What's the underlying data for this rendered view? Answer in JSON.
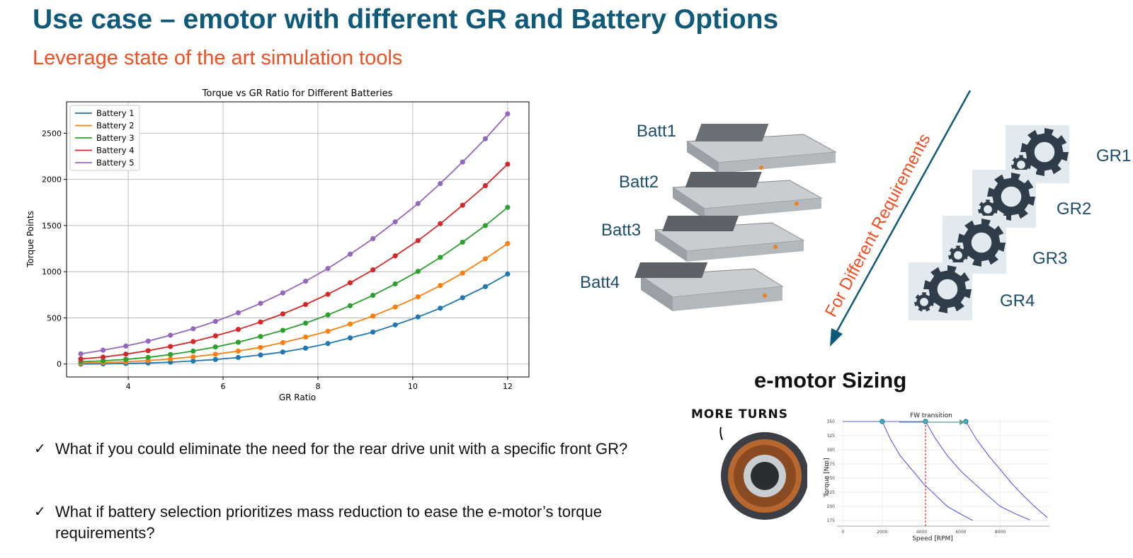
{
  "slide": {
    "title": "Use case – emotor with different GR and Battery Options",
    "subtitle": "Leverage state of the art simulation tools",
    "questions": [
      "What if you could eliminate the need for the rear drive unit with a specific front GR?",
      "What if battery selection prioritizes mass reduction to ease the e-motor’s torque requirements?"
    ],
    "check_glyph": "✓"
  },
  "diagram": {
    "batteries": [
      "Batt1",
      "Batt2",
      "Batt3",
      "Batt4"
    ],
    "gear_ratios": [
      "GR1",
      "GR2",
      "GR3",
      "GR4"
    ],
    "arrow_label": "For Different Requirements",
    "sizing_title": "e-motor Sizing",
    "more_turns": "MORE TURNS",
    "battery_icon": "battery-pack-icon",
    "gear_icon": "gear-icon",
    "colors": {
      "arrow": "#0f5a7a",
      "label": "#1c4d6b",
      "accent": "#f04e23",
      "gear_bg": "#e3eaef",
      "gear": "#2f3d4a"
    }
  },
  "chart_data": [
    {
      "type": "line",
      "title": "Torque vs GR Ratio for Different Batteries",
      "xlabel": "GR Ratio",
      "ylabel": "Torque Points",
      "xlim": [
        2.7,
        12.45
      ],
      "ylim": [
        -140,
        2840
      ],
      "xticks": [
        4,
        6,
        8,
        10,
        12
      ],
      "yticks": [
        0,
        500,
        1000,
        1500,
        2000,
        2500
      ],
      "grid": true,
      "legend_position": "upper-left",
      "x": [
        3.0,
        3.47,
        3.95,
        4.42,
        4.89,
        5.37,
        5.84,
        6.32,
        6.79,
        7.26,
        7.74,
        8.21,
        8.68,
        9.16,
        9.63,
        10.11,
        10.58,
        11.05,
        11.53,
        12.0
      ],
      "series": [
        {
          "name": "Battery 1",
          "color": "#1f77b4",
          "values": [
            0,
            2,
            6,
            11,
            20,
            33,
            49,
            71,
            98,
            130,
            172,
            222,
            283,
            346,
            424,
            510,
            605,
            718,
            838,
            975
          ]
        },
        {
          "name": "Battery 2",
          "color": "#ff7f0e",
          "values": [
            10,
            16,
            24,
            37,
            55,
            78,
            106,
            140,
            180,
            232,
            292,
            355,
            433,
            520,
            618,
            728,
            850,
            985,
            1140,
            1305
          ]
        },
        {
          "name": "Battery 3",
          "color": "#2ca02c",
          "values": [
            25,
            35,
            50,
            72,
            103,
            140,
            185,
            236,
            298,
            365,
            443,
            532,
            632,
            744,
            868,
            1004,
            1155,
            1320,
            1500,
            1697
          ]
        },
        {
          "name": "Battery 4",
          "color": "#d62728",
          "values": [
            55,
            75,
            107,
            145,
            190,
            243,
            305,
            375,
            455,
            543,
            645,
            756,
            880,
            1020,
            1172,
            1337,
            1520,
            1720,
            1932,
            2165
          ]
        },
        {
          "name": "Battery 5",
          "color": "#9467bd",
          "values": [
            110,
            150,
            195,
            248,
            312,
            382,
            462,
            555,
            657,
            770,
            897,
            1035,
            1190,
            1358,
            1540,
            1738,
            1955,
            2188,
            2440,
            2710
          ]
        }
      ]
    },
    {
      "type": "line",
      "title": "",
      "xlabel": "Speed [RPM]",
      "ylabel": "Torque [Nm]",
      "xlim": [
        -300,
        10500
      ],
      "ylim": [
        165,
        355
      ],
      "xticks": [
        0,
        2000,
        4000,
        6000,
        8000
      ],
      "yticks": [
        175,
        200,
        225,
        250,
        275,
        300,
        325,
        350
      ],
      "grid": true,
      "annotation": "FW transition",
      "marker_speed": 4200,
      "series": [
        {
          "name": "",
          "color": "#5a5ae0",
          "x": [
            0,
            2000,
            2400,
            2900,
            3500,
            4100,
            4700,
            5300,
            5800,
            6600
          ],
          "values": [
            350,
            350,
            320,
            290,
            265,
            240,
            220,
            200,
            190,
            175
          ]
        },
        {
          "name": "",
          "color": "#5a5ae0",
          "x": [
            0,
            4200,
            4700,
            5300,
            6000,
            6700,
            7400,
            8000,
            8700,
            9500
          ],
          "values": [
            350,
            350,
            320,
            290,
            262,
            240,
            218,
            200,
            188,
            176
          ]
        },
        {
          "name": "",
          "color": "#5a5ae0",
          "x": [
            6250,
            6800,
            7400,
            8000,
            8600,
            9200,
            9800,
            10400
          ],
          "values": [
            350,
            318,
            290,
            265,
            240,
            218,
            198,
            180
          ]
        }
      ],
      "points": [
        {
          "x": 2000,
          "y": 350
        },
        {
          "x": 4200,
          "y": 350
        },
        {
          "x": 6250,
          "y": 350
        }
      ]
    }
  ]
}
